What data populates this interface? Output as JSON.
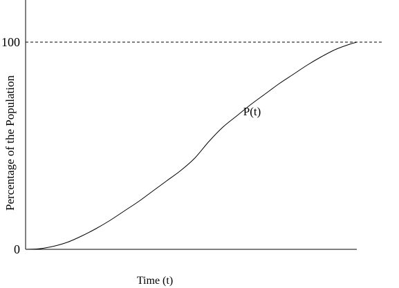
{
  "chart_data": {
    "type": "line",
    "title": "",
    "xlabel": "Time (t)",
    "ylabel": "Percentage of the Population",
    "ylim": [
      0,
      110
    ],
    "yticks": [
      {
        "value": 0,
        "label": "0"
      },
      {
        "value": 100,
        "label": "100"
      }
    ],
    "grid": false,
    "reference_line": {
      "y": 100,
      "style": "dashed"
    },
    "series": [
      {
        "name": "P(t)",
        "color": "#000000",
        "x": [
          0,
          2,
          4,
          6,
          8,
          10,
          12,
          14,
          16,
          18,
          20,
          22,
          24,
          26,
          28,
          30,
          32,
          34,
          36,
          38,
          40,
          42,
          44,
          46,
          47
        ],
        "y": [
          0,
          0.3,
          1.5,
          3.5,
          6.5,
          10,
          14,
          18.5,
          23,
          28,
          33,
          38,
          44,
          52,
          59,
          64.5,
          70,
          75,
          80,
          84.5,
          89,
          93,
          96.5,
          99,
          100
        ]
      }
    ],
    "annotations": [
      {
        "text": "P(t)",
        "x": 30,
        "y": 66
      }
    ]
  }
}
